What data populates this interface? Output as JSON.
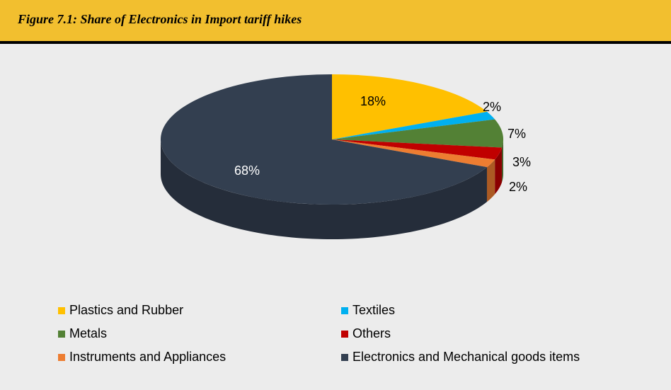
{
  "figure": {
    "title": "Figure 7.1: Share of Electronics in Import tariff hikes"
  },
  "chart_data": {
    "type": "pie",
    "title": "Figure 7.1: Share of Electronics in Import tariff hikes",
    "legend_position": "bottom",
    "three_d": true,
    "slices": [
      {
        "name": "Plastics and Rubber",
        "value": 18,
        "label": "18%",
        "color": "#ffc000"
      },
      {
        "name": "Textiles",
        "value": 2,
        "label": "2%",
        "color": "#00b0f0"
      },
      {
        "name": "Metals",
        "value": 7,
        "label": "7%",
        "color": "#538135"
      },
      {
        "name": "Others",
        "value": 3,
        "label": "3%",
        "color": "#c00000"
      },
      {
        "name": "Instruments and Appliances",
        "value": 2,
        "label": "2%",
        "color": "#ed7d31"
      },
      {
        "name": "Electronics and Mechanical goods items",
        "value": 68,
        "label": "68%",
        "color": "#333f50"
      }
    ]
  }
}
